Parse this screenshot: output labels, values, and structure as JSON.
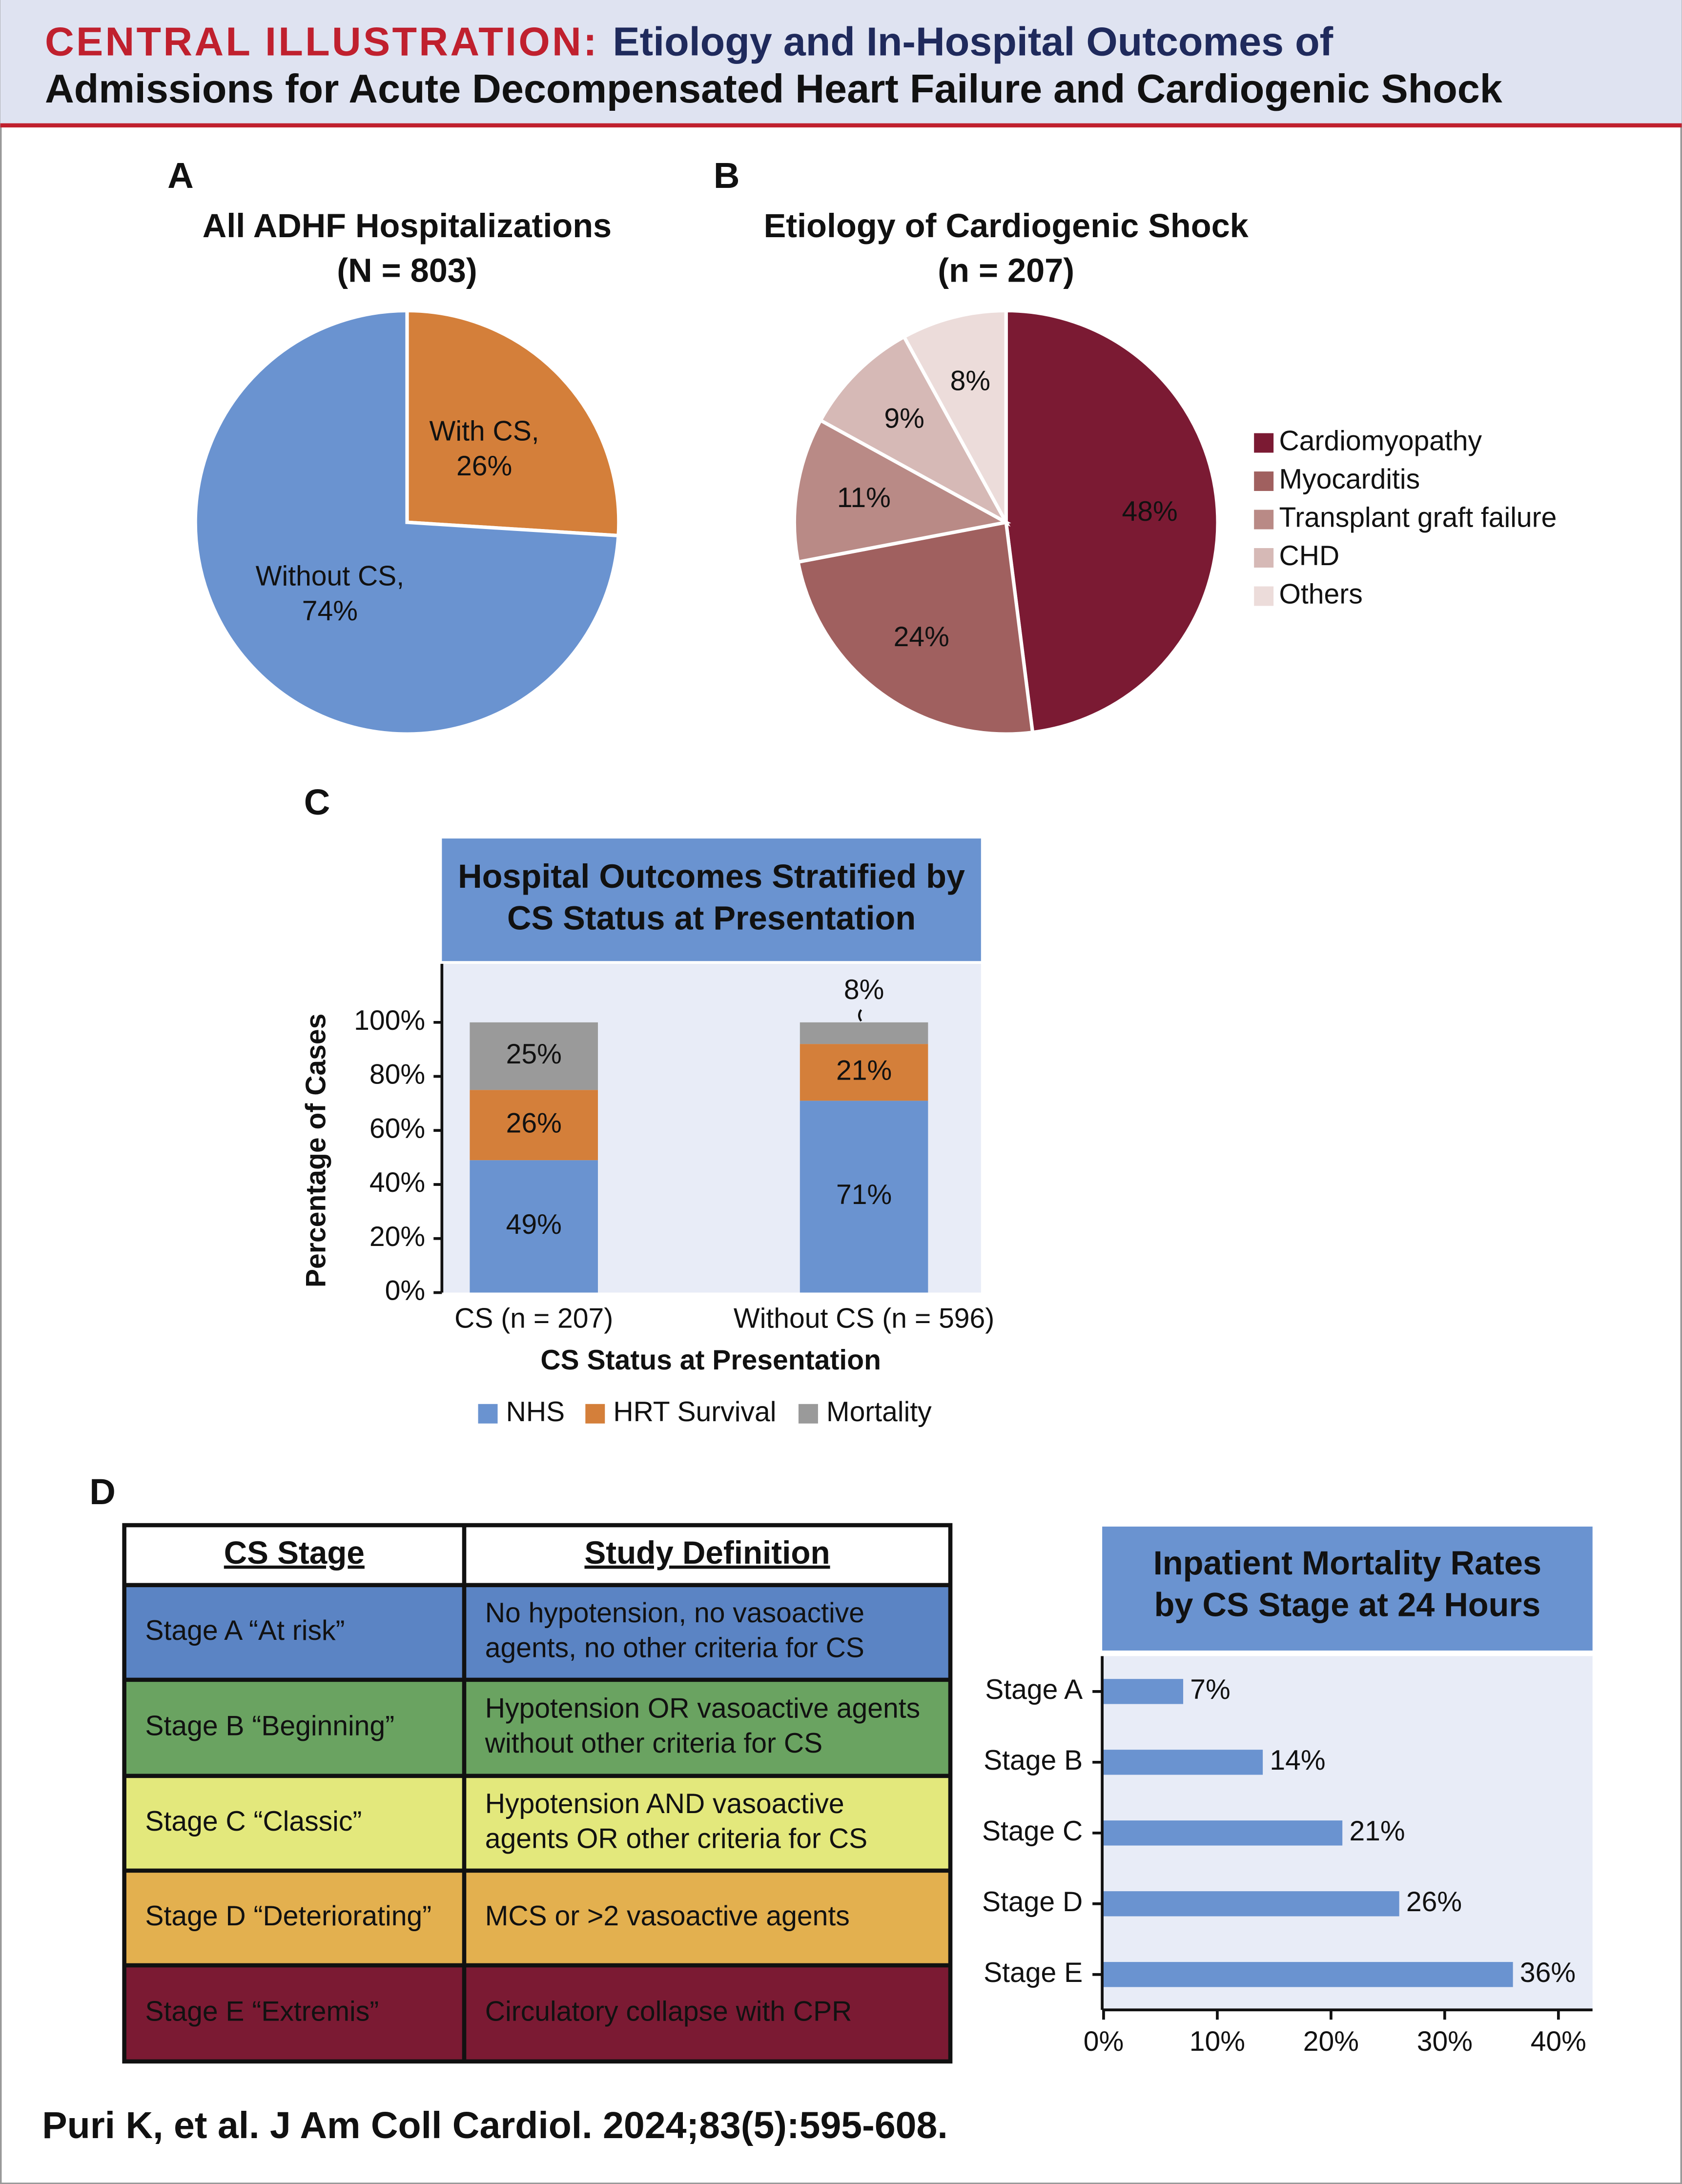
{
  "header": {
    "label": "CENTRAL ILLUSTRATION:",
    "title": [
      "Etiology and In-Hospital Outcomes of",
      "Admissions for Acute Decompensated Heart Failure and Cardiogenic Shock"
    ]
  },
  "panel_labels": [
    "A",
    "B",
    "C",
    "D"
  ],
  "chart_data": [
    {
      "type": "pie",
      "title": [
        "All ADHF Hospitalizations",
        "(N = 803)"
      ],
      "categories": [
        "With CS,",
        "Without CS,"
      ],
      "values": [
        26,
        74
      ],
      "value_labels": [
        "26%",
        "74%"
      ],
      "colors": [
        "#d47f3a",
        "#6a93d0"
      ],
      "label_colors": [
        "#111111",
        "#ffffff"
      ]
    },
    {
      "type": "pie",
      "title": [
        "Etiology of Cardiogenic Shock",
        "(n = 207)"
      ],
      "categories": [
        "Cardiomyopathy",
        "Myocarditis",
        "Transplant graft failure",
        "CHD",
        "Others"
      ],
      "values": [
        48,
        24,
        11,
        9,
        8
      ],
      "value_labels": [
        "48%",
        "24%",
        "11%",
        "9%",
        "8%"
      ],
      "colors": [
        "#7b1a33",
        "#a0605f",
        "#b98a86",
        "#d6b9b6",
        "#ecdcda"
      ],
      "label_colors": [
        "#ffffff",
        "#111111",
        "#111111",
        "#111111",
        "#111111"
      ],
      "legend": "right"
    },
    {
      "type": "bar",
      "stacked": true,
      "title": [
        "Hospital Outcomes Stratified by",
        "CS Status at Presentation"
      ],
      "categories": [
        "CS (n = 207)",
        "Without CS (n = 596)"
      ],
      "series": [
        {
          "name": "NHS",
          "color": "#6a93d0",
          "values": [
            49,
            71
          ],
          "value_labels": [
            "49%",
            "71%"
          ]
        },
        {
          "name": "HRT Survival",
          "color": "#d47f3a",
          "values": [
            26,
            21
          ],
          "value_labels": [
            "26%",
            "21%"
          ]
        },
        {
          "name": "Mortality",
          "color": "#9a9a9a",
          "values": [
            25,
            8
          ],
          "value_labels": [
            "25%",
            "8%"
          ]
        }
      ],
      "ylim": [
        0,
        100
      ],
      "yticks": [
        {
          "value": 0,
          "label": "0%"
        },
        {
          "value": 20,
          "label": "20%"
        },
        {
          "value": 40,
          "label": "40%"
        },
        {
          "value": 60,
          "label": "60%"
        },
        {
          "value": 80,
          "label": "80%"
        },
        {
          "value": 100,
          "label": "100%"
        }
      ],
      "ylabel": "Percentage of Cases",
      "xlabel": "CS Status at Presentation",
      "legend": "bottom"
    },
    {
      "type": "bar",
      "horizontal": true,
      "title": [
        "Inpatient Mortality Rates",
        "by CS Stage at 24 Hours"
      ],
      "categories": [
        "Stage A",
        "Stage B",
        "Stage C",
        "Stage D",
        "Stage E"
      ],
      "values": [
        7,
        14,
        21,
        26,
        36
      ],
      "value_labels": [
        "7%",
        "14%",
        "21%",
        "26%",
        "36%"
      ],
      "color": "#6a93d0",
      "xlim": [
        0,
        43
      ],
      "xticks": [
        {
          "value": 0,
          "label": "0%"
        },
        {
          "value": 10,
          "label": "10%"
        },
        {
          "value": 20,
          "label": "20%"
        },
        {
          "value": 30,
          "label": "30%"
        },
        {
          "value": 40,
          "label": "40%"
        }
      ]
    }
  ],
  "table": {
    "header": [
      "CS Stage",
      "Study Definition"
    ],
    "rows": [
      [
        [
          "Stage A “At risk”"
        ],
        [
          "No hypotension, no vasoactive",
          "agents, no other criteria for CS"
        ]
      ],
      [
        [
          "Stage B “Beginning”"
        ],
        [
          "Hypotension OR vasoactive agents",
          "without other criteria for CS"
        ]
      ],
      [
        [
          "Stage C “Classic”"
        ],
        [
          "Hypotension AND vasoactive",
          "agents OR other criteria for CS"
        ]
      ],
      [
        [
          "Stage D “Deteriorating”"
        ],
        [
          "MCS or >2 vasoactive agents"
        ]
      ],
      [
        [
          "Stage E “Extremis”"
        ],
        [
          "Circulatory collapse with CPR"
        ]
      ]
    ],
    "row_colors": [
      "#5b84c4",
      "#6aa361",
      "#e3e87c",
      "#e3b04f",
      "#7b1a33"
    ],
    "text_colors": [
      "#ffffff",
      "#ffffff",
      "#111111",
      "#111111",
      "#ffffff"
    ]
  },
  "citation": "Puri K, et al. J Am Coll Cardiol. 2024;83(5):595-608."
}
